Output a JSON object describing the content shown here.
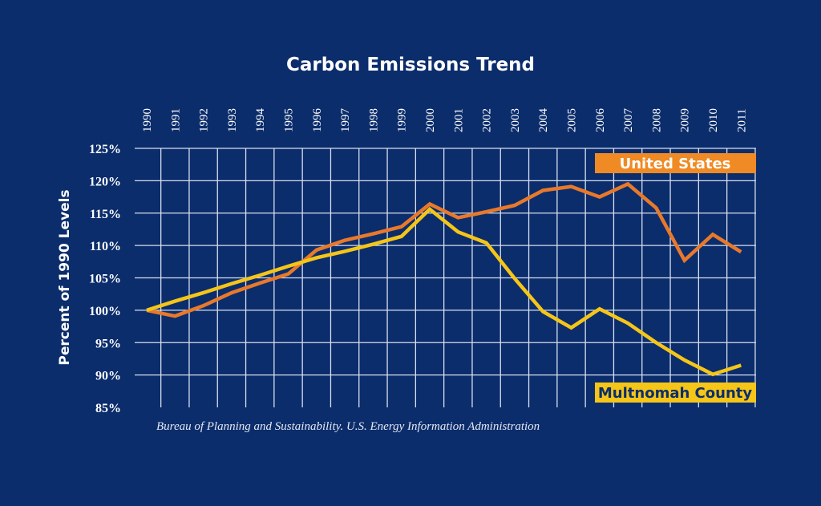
{
  "chart_data": {
    "type": "line",
    "title": "Carbon Emissions Trend",
    "xlabel": "",
    "ylabel": "Percent of 1990 Levels",
    "x": [
      1990,
      1991,
      1992,
      1993,
      1994,
      1995,
      1996,
      1997,
      1998,
      1999,
      2000,
      2001,
      2002,
      2003,
      2004,
      2005,
      2006,
      2007,
      2008,
      2009,
      2010,
      2011
    ],
    "x_tick_labels": [
      "1990",
      "1991",
      "1992",
      "1993",
      "1994",
      "1995",
      "1996",
      "1997",
      "1998",
      "1999",
      "2000",
      "2001",
      "2002",
      "2003",
      "2004",
      "2005",
      "2006",
      "2007",
      "2008",
      "2009",
      "2010",
      "2011"
    ],
    "y_ticks": [
      85,
      90,
      95,
      100,
      105,
      110,
      115,
      120,
      125
    ],
    "y_tick_labels": [
      "85%",
      "90%",
      "95%",
      "100%",
      "105%",
      "110%",
      "115%",
      "120%",
      "125%"
    ],
    "ylim": [
      85,
      125
    ],
    "grid": true,
    "legend_placement": "inline-labels right",
    "series": [
      {
        "name": "United States",
        "color": "#e8792b",
        "label_bg": "#f08a24",
        "label_fg": "#ffffff",
        "values": [
          100,
          99.1,
          100.7,
          102.7,
          104.2,
          105.6,
          109.3,
          110.8,
          111.8,
          112.9,
          116.4,
          114.3,
          115.2,
          116.2,
          118.5,
          119.1,
          117.5,
          119.5,
          115.8,
          107.7,
          111.7,
          109.0
        ]
      },
      {
        "name": "Multnomah County",
        "color": "#f5c518",
        "label_bg": "#f5c518",
        "label_fg": "#0b2d6c",
        "values": [
          100,
          101.4,
          102.7,
          104.1,
          105.4,
          106.8,
          108.1,
          109.1,
          110.2,
          111.4,
          115.6,
          112.1,
          110.4,
          104.9,
          99.8,
          97.3,
          100.2,
          98.0,
          95.0,
          92.3,
          90.1,
          91.5
        ]
      }
    ],
    "source": "Bureau of Planning and Sustainability. U.S. Energy Information Administration"
  },
  "colors": {
    "background": "#0b2d6c",
    "grid": "#d8deee"
  }
}
